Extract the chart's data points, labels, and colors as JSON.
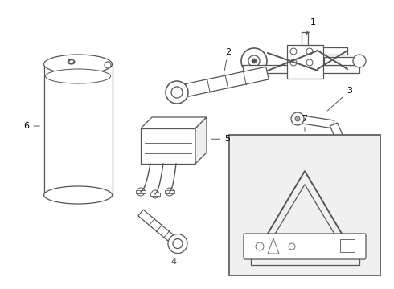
{
  "bg_color": "#ffffff",
  "line_color": "#555555",
  "label_color": "#000000",
  "lw": 0.9
}
